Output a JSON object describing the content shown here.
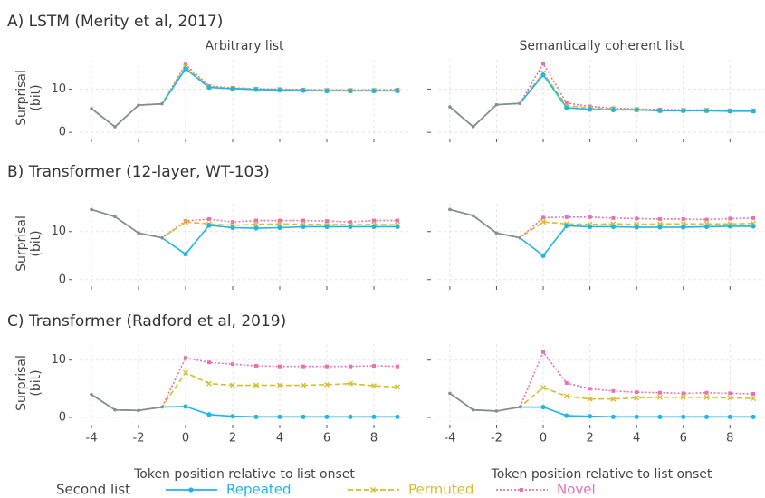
{
  "legend": {
    "title": "Second list"
  },
  "pre_onset_color": "#8c8c8c",
  "chart_data": [
    {
      "type": "line",
      "row_title": "A) LSTM (Merity et al, 2017)",
      "title": "Arbitrary list",
      "ylabel": [
        "Surprisal",
        "(bit)"
      ],
      "x": [
        -4,
        -3,
        -2,
        -1,
        0,
        1,
        2,
        3,
        4,
        5,
        6,
        7,
        8,
        9
      ],
      "xlim": [
        -4.5,
        9.5
      ],
      "xticks": [
        -4,
        -2,
        0,
        2,
        4,
        6,
        8
      ],
      "ylim": [
        -0.8,
        16.8
      ],
      "yticks": [
        0,
        10
      ],
      "grid": true,
      "series": [
        {
          "name": "Repeated",
          "color": "#1bb7e6",
          "marker": "circle",
          "dash": "solid",
          "values": [
            5.5,
            1.3,
            6.3,
            6.6,
            14.7,
            10.4,
            10.1,
            9.9,
            9.8,
            9.7,
            9.6,
            9.6,
            9.6,
            9.6
          ]
        },
        {
          "name": "Permuted",
          "color": "#d6bf2a",
          "marker": "x",
          "dash": "dashed",
          "values": [
            5.5,
            1.3,
            6.3,
            6.6,
            15.2,
            10.5,
            10.2,
            10.0,
            9.9,
            9.8,
            9.7,
            9.7,
            9.7,
            9.7
          ]
        },
        {
          "name": "Novel",
          "color": "#ec6fb3",
          "marker": "square",
          "dash": "dotted",
          "values": [
            5.5,
            1.3,
            6.3,
            6.6,
            15.7,
            10.7,
            10.3,
            10.1,
            10.0,
            9.9,
            9.8,
            9.8,
            9.8,
            9.9
          ]
        }
      ]
    },
    {
      "type": "line",
      "title": "Semantically coherent list",
      "x": [
        -4,
        -3,
        -2,
        -1,
        0,
        1,
        2,
        3,
        4,
        5,
        6,
        7,
        8,
        9
      ],
      "xlim": [
        -4.5,
        9.5
      ],
      "xticks": [
        -4,
        -2,
        0,
        2,
        4,
        6,
        8
      ],
      "ylim": [
        -0.8,
        16.8
      ],
      "yticks": [
        0,
        10
      ],
      "grid": true,
      "series": [
        {
          "name": "Repeated",
          "color": "#1bb7e6",
          "marker": "circle",
          "dash": "solid",
          "values": [
            5.9,
            1.3,
            6.4,
            6.7,
            13.3,
            5.7,
            5.3,
            5.2,
            5.2,
            5.0,
            5.0,
            5.0,
            4.9,
            4.9
          ]
        },
        {
          "name": "Permuted",
          "color": "#d6bf2a",
          "marker": "x",
          "dash": "dashed",
          "values": [
            5.9,
            1.3,
            6.4,
            6.7,
            13.8,
            6.2,
            5.6,
            5.4,
            5.3,
            5.1,
            5.1,
            5.1,
            5.0,
            5.0
          ]
        },
        {
          "name": "Novel",
          "color": "#ec6fb3",
          "marker": "square",
          "dash": "dotted",
          "values": [
            5.9,
            1.3,
            6.4,
            6.7,
            15.9,
            6.8,
            6.0,
            5.6,
            5.4,
            5.3,
            5.2,
            5.2,
            5.1,
            5.1
          ]
        }
      ]
    },
    {
      "type": "line",
      "row_title": "B) Transformer (12-layer, WT-103)",
      "ylabel": [
        "Surprisal",
        "(bit)"
      ],
      "x": [
        -4,
        -3,
        -2,
        -1,
        0,
        1,
        2,
        3,
        4,
        5,
        6,
        7,
        8,
        9
      ],
      "xlim": [
        -4.5,
        9.5
      ],
      "xticks": [
        -4,
        -2,
        0,
        2,
        4,
        6,
        8
      ],
      "ylim": [
        -0.8,
        15.8
      ],
      "yticks": [
        0,
        10
      ],
      "grid": true,
      "series": [
        {
          "name": "Repeated",
          "color": "#1bb7e6",
          "marker": "circle",
          "dash": "solid",
          "values": [
            14.6,
            13.1,
            9.7,
            8.7,
            5.3,
            11.3,
            10.8,
            10.7,
            10.8,
            11.0,
            11.0,
            11.0,
            11.0,
            11.0
          ]
        },
        {
          "name": "Permuted",
          "color": "#d6bf2a",
          "marker": "x",
          "dash": "dashed",
          "values": [
            14.6,
            13.1,
            9.7,
            8.7,
            12.0,
            11.6,
            11.3,
            11.5,
            11.6,
            11.5,
            11.5,
            11.4,
            11.5,
            11.4
          ]
        },
        {
          "name": "Novel",
          "color": "#ec6fb3",
          "marker": "square",
          "dash": "dotted",
          "values": [
            14.6,
            13.1,
            9.7,
            8.7,
            12.2,
            12.6,
            12.0,
            12.3,
            12.3,
            12.3,
            12.2,
            12.0,
            12.3,
            12.3
          ]
        }
      ]
    },
    {
      "type": "line",
      "x": [
        -4,
        -3,
        -2,
        -1,
        0,
        1,
        2,
        3,
        4,
        5,
        6,
        7,
        8,
        9
      ],
      "xlim": [
        -4.5,
        9.5
      ],
      "xticks": [
        -4,
        -2,
        0,
        2,
        4,
        6,
        8
      ],
      "ylim": [
        -0.8,
        15.8
      ],
      "yticks": [
        0,
        10
      ],
      "grid": true,
      "series": [
        {
          "name": "Repeated",
          "color": "#1bb7e6",
          "marker": "circle",
          "dash": "solid",
          "values": [
            14.6,
            13.3,
            9.7,
            8.7,
            5.0,
            11.2,
            11.0,
            11.0,
            10.9,
            10.9,
            10.9,
            11.0,
            11.1,
            11.1
          ]
        },
        {
          "name": "Permuted",
          "color": "#d6bf2a",
          "marker": "x",
          "dash": "dashed",
          "values": [
            14.6,
            13.3,
            9.7,
            8.7,
            12.0,
            11.6,
            11.5,
            11.6,
            11.5,
            11.6,
            11.6,
            11.6,
            11.6,
            11.7
          ]
        },
        {
          "name": "Novel",
          "color": "#ec6fb3",
          "marker": "square",
          "dash": "dotted",
          "values": [
            14.6,
            13.3,
            9.7,
            8.7,
            12.9,
            13.0,
            13.0,
            12.8,
            12.7,
            12.6,
            12.6,
            12.5,
            12.7,
            12.8
          ]
        }
      ]
    },
    {
      "type": "line",
      "row_title": "C) Transformer (Radford et al, 2019)",
      "ylabel": [
        "Surprisal",
        "(bit)"
      ],
      "xlabel": "Token position relative to list onset",
      "x": [
        -4,
        -3,
        -2,
        -1,
        0,
        1,
        2,
        3,
        4,
        5,
        6,
        7,
        8,
        9
      ],
      "xlim": [
        -4.5,
        9.5
      ],
      "xticks": [
        -4,
        -2,
        0,
        2,
        4,
        6,
        8
      ],
      "ylim": [
        -0.8,
        12.8
      ],
      "yticks": [
        0,
        10
      ],
      "grid": true,
      "series": [
        {
          "name": "Repeated",
          "color": "#1bb7e6",
          "marker": "circle",
          "dash": "solid",
          "values": [
            4.0,
            1.3,
            1.2,
            1.8,
            1.9,
            0.5,
            0.2,
            0.1,
            0.1,
            0.1,
            0.1,
            0.1,
            0.1,
            0.1
          ]
        },
        {
          "name": "Permuted",
          "color": "#d6bf2a",
          "marker": "x",
          "dash": "dashed",
          "values": [
            4.0,
            1.3,
            1.2,
            1.8,
            7.8,
            5.9,
            5.6,
            5.6,
            5.6,
            5.6,
            5.7,
            5.9,
            5.5,
            5.3
          ]
        },
        {
          "name": "Novel",
          "color": "#ec6fb3",
          "marker": "square",
          "dash": "dotted",
          "values": [
            4.0,
            1.3,
            1.2,
            1.8,
            10.4,
            9.6,
            9.3,
            9.0,
            8.9,
            8.9,
            8.9,
            8.9,
            9.0,
            8.9
          ]
        }
      ]
    },
    {
      "type": "line",
      "xlabel": "Token position relative to list onset",
      "x": [
        -4,
        -3,
        -2,
        -1,
        0,
        1,
        2,
        3,
        4,
        5,
        6,
        7,
        8,
        9
      ],
      "xlim": [
        -4.5,
        9.5
      ],
      "xticks": [
        -4,
        -2,
        0,
        2,
        4,
        6,
        8
      ],
      "ylim": [
        -0.8,
        12.8
      ],
      "yticks": [
        0,
        10
      ],
      "grid": true,
      "series": [
        {
          "name": "Repeated",
          "color": "#1bb7e6",
          "marker": "circle",
          "dash": "solid",
          "values": [
            4.2,
            1.3,
            1.1,
            1.8,
            1.8,
            0.3,
            0.2,
            0.1,
            0.1,
            0.1,
            0.1,
            0.1,
            0.1,
            0.1
          ]
        },
        {
          "name": "Permuted",
          "color": "#d6bf2a",
          "marker": "x",
          "dash": "dashed",
          "values": [
            4.2,
            1.3,
            1.1,
            1.8,
            5.2,
            3.7,
            3.2,
            3.2,
            3.4,
            3.5,
            3.5,
            3.5,
            3.4,
            3.3
          ]
        },
        {
          "name": "Novel",
          "color": "#ec6fb3",
          "marker": "square",
          "dash": "dotted",
          "values": [
            4.2,
            1.3,
            1.1,
            1.8,
            11.4,
            6.0,
            5.0,
            4.6,
            4.4,
            4.3,
            4.2,
            4.3,
            4.2,
            4.1
          ]
        }
      ]
    }
  ]
}
